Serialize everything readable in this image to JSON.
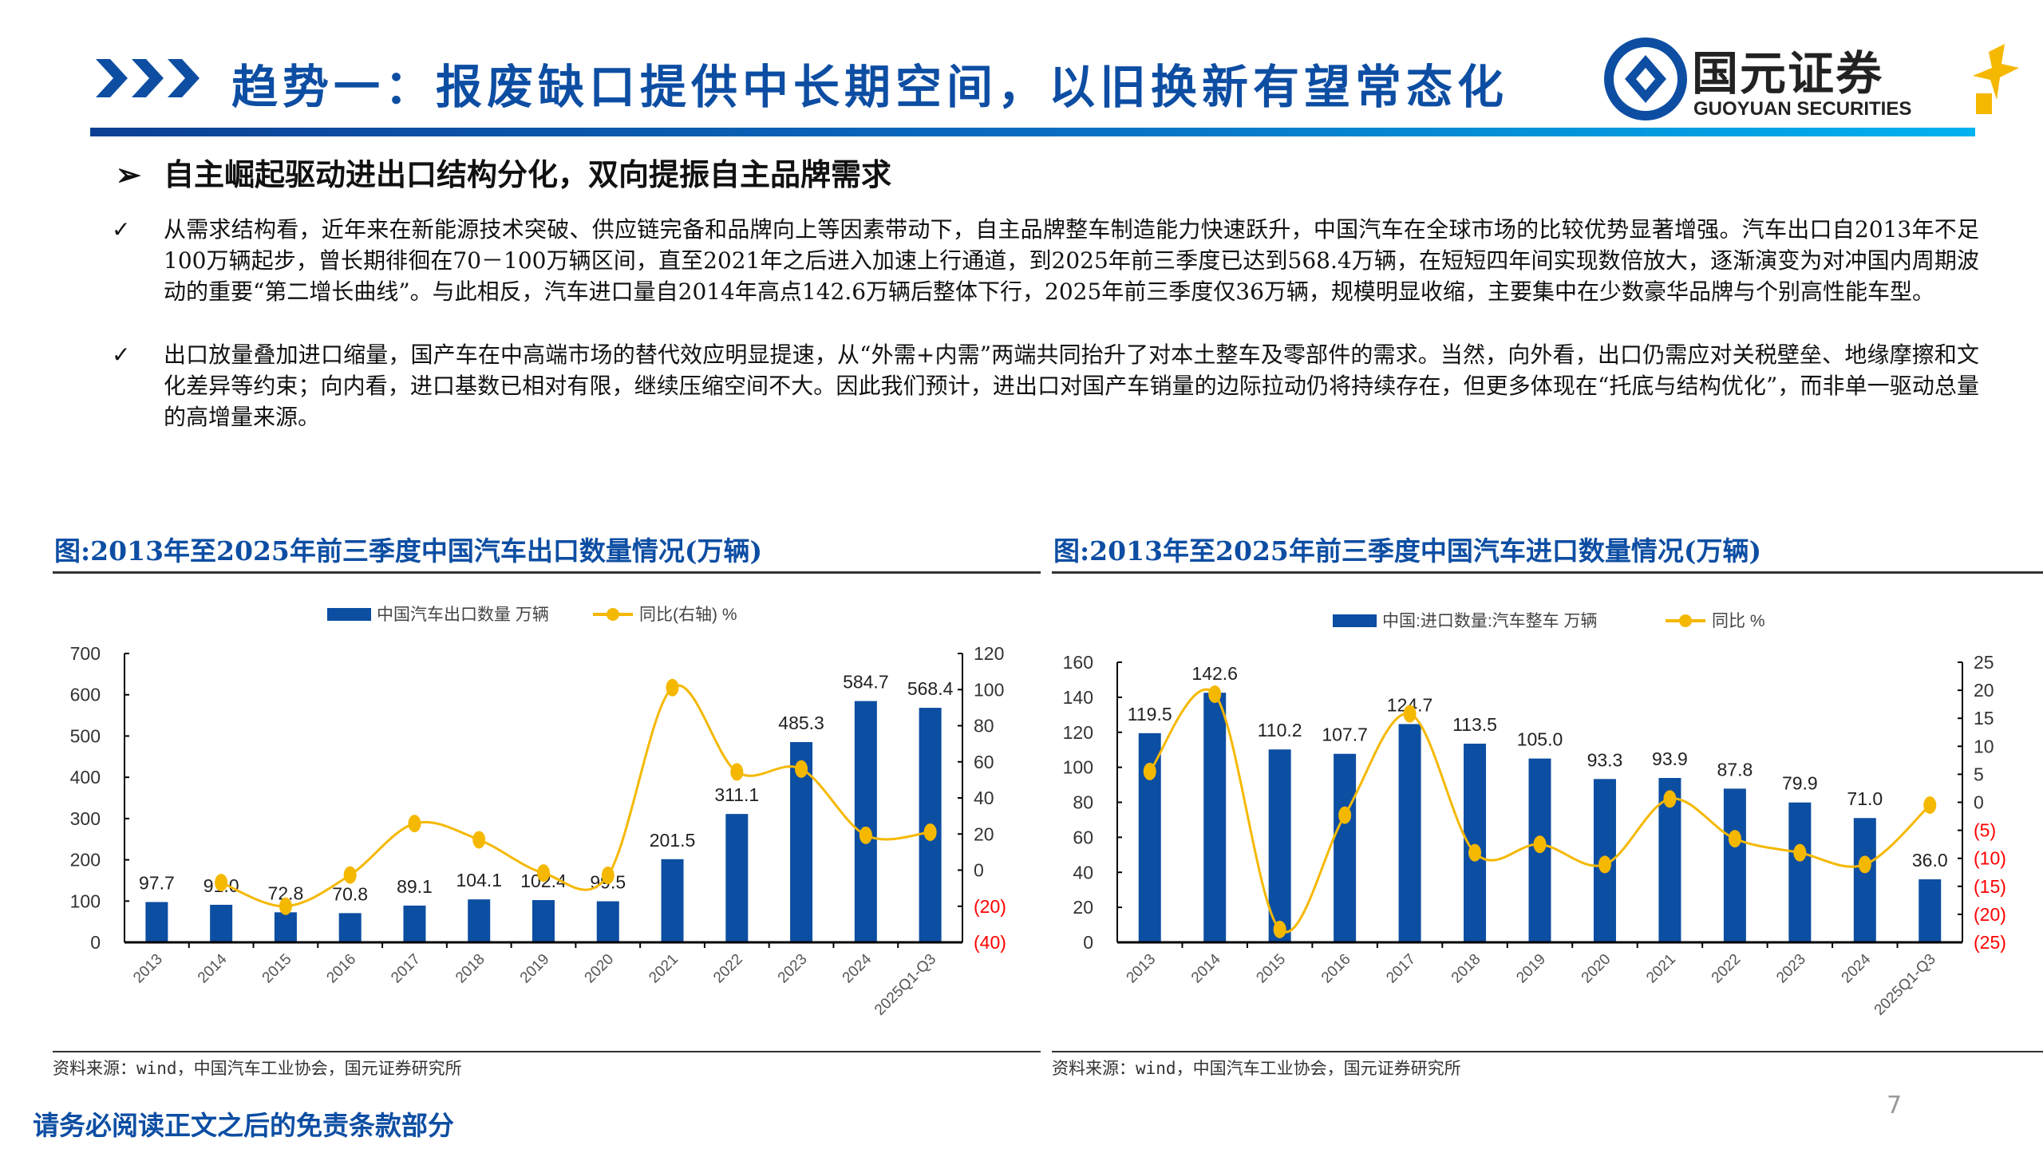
{
  "header": {
    "title": "趋势一：报废缺口提供中长期空间，以旧换新有望常态化",
    "logo_cn": "国元证券",
    "logo_en": "GUOYUAN SECURITIES",
    "accent": "#0d4ea3"
  },
  "subtitle": "自主崛起驱动进出口结构分化，双向提振自主品牌需求",
  "bullets": [
    "从需求结构看，近年来在新能源技术突破、供应链完备和品牌向上等因素带动下，自主品牌整车制造能力快速跃升，中国汽车在全球市场的比较优势显著增强。汽车出口自2013年不足100万辆起步，曾长期徘徊在70－100万辆区间，直至2021年之后进入加速上行通道，到2025年前三季度已达到568.4万辆，在短短四年间实现数倍放大，逐渐演变为对冲国内周期波动的重要“第二增长曲线”。与此相反，汽车进口量自2014年高点142.6万辆后整体下行，2025年前三季度仅36万辆，规模明显收缩，主要集中在少数豪华品牌与个别高性能车型。",
    "出口放量叠加进口缩量，国产车在中高端市场的替代效应明显提速，从“外需+内需”两端共同抬升了对本土整车及零部件的需求。当然，向外看，出口仍需应对关税壁垒、地缘摩擦和文化差异等约束；向内看，进口基数已相对有限，继续压缩空间不大。因此我们预计，进出口对国产车销量的边际拉动仍将持续存在，但更多体现在“托底与结构优化”，而非单一驱动总量的高增量来源。"
  ],
  "footer": {
    "disclaimer": "请务必阅读正文之后的免责条款部分",
    "page": "7"
  },
  "chart_data": [
    {
      "type": "bar",
      "title": "图:2013年至2025年前三季度中国汽车出口数量情况(万辆)",
      "source": "资料来源：wind，中国汽车工业协会，国元证券研究所",
      "categories": [
        "2013",
        "2014",
        "2015",
        "2016",
        "2017",
        "2018",
        "2019",
        "2020",
        "2021",
        "2022",
        "2023",
        "2024",
        "2025Q1-Q3"
      ],
      "series": [
        {
          "name": "中国汽车出口数量 万辆",
          "type": "bar",
          "axis": "left",
          "color": "#0c4ea2",
          "values": [
            97.7,
            91.0,
            72.8,
            70.8,
            89.1,
            104.1,
            102.4,
            99.5,
            201.5,
            311.1,
            485.3,
            584.7,
            568.4
          ],
          "labels": [
            "97.7",
            "91.0",
            "72.8",
            "70.8",
            "89.1",
            "104.1",
            "102.4",
            "99.5",
            "201.5",
            "311.1",
            "485.3",
            "584.7",
            "568.4"
          ]
        },
        {
          "name": "同比(右轴) %",
          "type": "line",
          "axis": "right",
          "color": "#f5b800",
          "values": [
            null,
            -6.9,
            -20.0,
            -2.7,
            25.8,
            16.8,
            -1.6,
            -2.9,
            101.1,
            54.4,
            56.0,
            19.3,
            21.0
          ]
        }
      ],
      "ylim": [
        0,
        700
      ],
      "yticks": [
        "0",
        "100",
        "200",
        "300",
        "400",
        "500",
        "600",
        "700"
      ],
      "y2lim": [
        -40,
        120
      ],
      "y2ticks": [
        "(40)",
        "(20)",
        "0",
        "20",
        "40",
        "60",
        "80",
        "100",
        "120"
      ],
      "negative_tick_color": "#ff0000",
      "legend": "top-center",
      "grid": false
    },
    {
      "type": "bar",
      "title": "图:2013年至2025年前三季度中国汽车进口数量情况(万辆)",
      "source": "资料来源：wind，中国汽车工业协会，国元证券研究所",
      "categories": [
        "2013",
        "2014",
        "2015",
        "2016",
        "2017",
        "2018",
        "2019",
        "2020",
        "2021",
        "2022",
        "2023",
        "2024",
        "2025Q1-Q3"
      ],
      "series": [
        {
          "name": "中国:进口数量:汽车整车 万辆",
          "type": "bar",
          "axis": "left",
          "color": "#0c4ea2",
          "values": [
            119.5,
            142.6,
            110.2,
            107.7,
            124.7,
            113.5,
            105.0,
            93.3,
            93.9,
            87.8,
            79.9,
            71.0,
            36.0
          ],
          "labels": [
            "119.5",
            "142.6",
            "110.2",
            "107.7",
            "124.7",
            "113.5",
            "105.0",
            "93.3",
            "93.9",
            "87.8",
            "79.9",
            "71.0",
            "36.0"
          ]
        },
        {
          "name": "同比 %",
          "type": "line",
          "axis": "right",
          "color": "#f5b800",
          "values": [
            5.5,
            19.3,
            -22.7,
            -2.3,
            15.8,
            -9.0,
            -7.5,
            -11.1,
            0.6,
            -6.5,
            -9.0,
            -11.1,
            -0.5
          ]
        }
      ],
      "ylim": [
        0,
        160
      ],
      "yticks": [
        "0",
        "20",
        "40",
        "60",
        "80",
        "100",
        "120",
        "140",
        "160"
      ],
      "y2lim": [
        -25,
        25
      ],
      "y2ticks": [
        "(25)",
        "(20)",
        "(15)",
        "(10)",
        "(5)",
        "0",
        "5",
        "10",
        "15",
        "20",
        "25"
      ],
      "negative_tick_color": "#ff0000",
      "legend": "top-center",
      "grid": false
    }
  ]
}
